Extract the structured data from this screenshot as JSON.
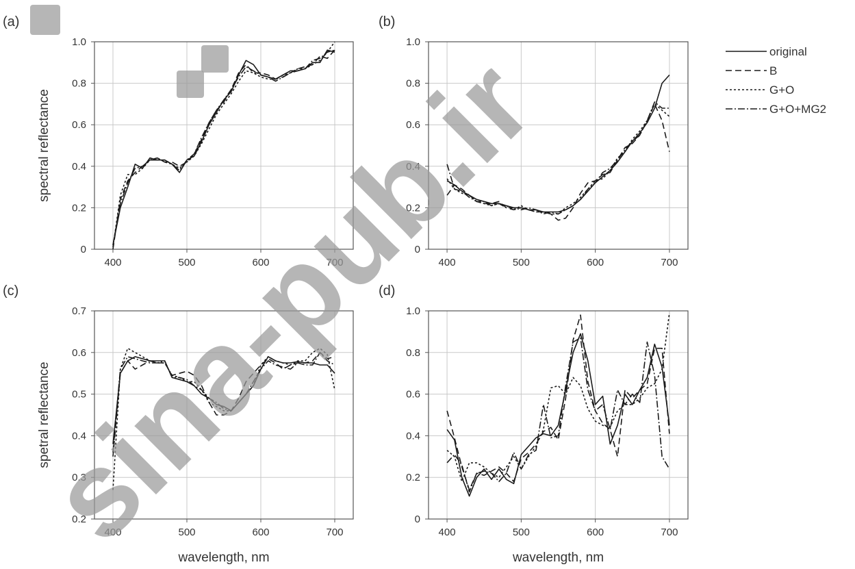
{
  "watermark": {
    "text": "sina-pub.ir"
  },
  "legend": {
    "entries": [
      {
        "name": "original",
        "dash": ""
      },
      {
        "name": "B",
        "dash": "9 5"
      },
      {
        "name": "G+O",
        "dash": "3 3"
      },
      {
        "name": "G+O+MG2",
        "dash": "10 3 2 3"
      }
    ]
  },
  "chart_data": [
    {
      "type": "line",
      "panel_label": "(a)",
      "xlabel": "",
      "ylabel": "spectral reflectance",
      "xlim": [
        375,
        725
      ],
      "ylim": [
        0,
        1.0
      ],
      "xticks": [
        400,
        500,
        600,
        700
      ],
      "yticks": [
        0,
        0.2,
        0.4,
        0.6,
        0.8,
        1.0
      ],
      "ytick_labels": [
        "0",
        "0.2",
        "0.4",
        "0.6",
        "0.8",
        "1.0"
      ],
      "grid": true,
      "x": [
        400,
        410,
        420,
        430,
        440,
        450,
        460,
        470,
        480,
        490,
        500,
        510,
        520,
        530,
        540,
        550,
        560,
        570,
        580,
        590,
        600,
        610,
        620,
        630,
        640,
        650,
        660,
        670,
        680,
        690,
        700
      ],
      "series": [
        {
          "name": "original",
          "values": [
            0.02,
            0.2,
            0.3,
            0.41,
            0.39,
            0.44,
            0.43,
            0.43,
            0.41,
            0.37,
            0.43,
            0.45,
            0.52,
            0.6,
            0.66,
            0.72,
            0.76,
            0.84,
            0.91,
            0.89,
            0.84,
            0.83,
            0.82,
            0.84,
            0.86,
            0.86,
            0.87,
            0.9,
            0.9,
            0.96,
            0.95
          ]
        },
        {
          "name": "B",
          "values": [
            0.0,
            0.24,
            0.33,
            0.37,
            0.4,
            0.43,
            0.44,
            0.42,
            0.42,
            0.4,
            0.42,
            0.46,
            0.53,
            0.61,
            0.67,
            0.71,
            0.77,
            0.85,
            0.89,
            0.85,
            0.85,
            0.84,
            0.82,
            0.83,
            0.85,
            0.87,
            0.88,
            0.89,
            0.93,
            0.92,
            0.96
          ]
        },
        {
          "name": "G+O",
          "values": [
            0.01,
            0.26,
            0.36,
            0.36,
            0.39,
            0.43,
            0.44,
            0.42,
            0.41,
            0.39,
            0.42,
            0.45,
            0.51,
            0.58,
            0.65,
            0.7,
            0.75,
            0.81,
            0.86,
            0.85,
            0.83,
            0.82,
            0.82,
            0.84,
            0.85,
            0.87,
            0.87,
            0.89,
            0.91,
            0.95,
            1.0
          ]
        },
        {
          "name": "G+O+MG2",
          "values": [
            0.02,
            0.22,
            0.32,
            0.39,
            0.4,
            0.43,
            0.43,
            0.43,
            0.41,
            0.38,
            0.43,
            0.46,
            0.54,
            0.61,
            0.67,
            0.72,
            0.77,
            0.83,
            0.88,
            0.86,
            0.84,
            0.83,
            0.81,
            0.83,
            0.85,
            0.86,
            0.87,
            0.91,
            0.92,
            0.95,
            0.96
          ]
        }
      ]
    },
    {
      "type": "line",
      "panel_label": "(b)",
      "xlabel": "",
      "ylabel": "",
      "xlim": [
        375,
        725
      ],
      "ylim": [
        0,
        1.0
      ],
      "xticks": [
        400,
        500,
        600,
        700
      ],
      "yticks": [
        0,
        0.2,
        0.4,
        0.6,
        0.8,
        1.0
      ],
      "ytick_labels": [
        "0",
        "0.2",
        "0.4",
        "0.6",
        "0.8",
        "1.0"
      ],
      "grid": true,
      "x": [
        400,
        410,
        420,
        430,
        440,
        450,
        460,
        470,
        480,
        490,
        500,
        510,
        520,
        530,
        540,
        550,
        560,
        570,
        580,
        590,
        600,
        610,
        620,
        630,
        640,
        650,
        660,
        670,
        680,
        690,
        700
      ],
      "series": [
        {
          "name": "original",
          "values": [
            0.33,
            0.31,
            0.28,
            0.26,
            0.24,
            0.23,
            0.22,
            0.22,
            0.21,
            0.2,
            0.2,
            0.19,
            0.19,
            0.18,
            0.18,
            0.18,
            0.19,
            0.21,
            0.24,
            0.28,
            0.32,
            0.35,
            0.38,
            0.42,
            0.47,
            0.52,
            0.56,
            0.61,
            0.68,
            0.8,
            0.84
          ]
        },
        {
          "name": "B",
          "values": [
            0.26,
            0.31,
            0.29,
            0.26,
            0.23,
            0.22,
            0.22,
            0.23,
            0.2,
            0.19,
            0.2,
            0.19,
            0.18,
            0.18,
            0.17,
            0.14,
            0.15,
            0.2,
            0.27,
            0.32,
            0.33,
            0.36,
            0.37,
            0.43,
            0.49,
            0.51,
            0.55,
            0.62,
            0.7,
            0.62,
            0.47
          ]
        },
        {
          "name": "G+O",
          "values": [
            0.34,
            0.29,
            0.27,
            0.26,
            0.23,
            0.22,
            0.21,
            0.22,
            0.21,
            0.19,
            0.21,
            0.19,
            0.18,
            0.18,
            0.17,
            0.17,
            0.2,
            0.22,
            0.25,
            0.29,
            0.33,
            0.34,
            0.38,
            0.44,
            0.47,
            0.53,
            0.57,
            0.62,
            0.7,
            0.67,
            0.64
          ]
        },
        {
          "name": "G+O+MG2",
          "values": [
            0.41,
            0.29,
            0.28,
            0.25,
            0.23,
            0.23,
            0.21,
            0.22,
            0.2,
            0.2,
            0.19,
            0.2,
            0.19,
            0.17,
            0.18,
            0.17,
            0.19,
            0.21,
            0.24,
            0.29,
            0.32,
            0.37,
            0.39,
            0.43,
            0.48,
            0.52,
            0.55,
            0.62,
            0.71,
            0.68,
            0.68
          ]
        }
      ]
    },
    {
      "type": "line",
      "panel_label": "(c)",
      "xlabel": "wavelength, nm",
      "ylabel": "spetral reflectance",
      "xlim": [
        375,
        725
      ],
      "ylim": [
        0.2,
        0.7
      ],
      "xticks": [
        400,
        500,
        600,
        700
      ],
      "yticks": [
        0.2,
        0.3,
        0.4,
        0.5,
        0.6,
        0.7
      ],
      "ytick_labels": [
        "0.2",
        "0.3",
        "0.4",
        "0.5",
        "0.6",
        "0.7"
      ],
      "grid": true,
      "x": [
        400,
        410,
        420,
        430,
        440,
        450,
        460,
        470,
        480,
        490,
        500,
        510,
        520,
        530,
        540,
        550,
        560,
        570,
        580,
        590,
        600,
        610,
        620,
        630,
        640,
        650,
        660,
        670,
        680,
        690,
        700
      ],
      "series": [
        {
          "name": "original",
          "values": [
            0.38,
            0.55,
            0.58,
            0.59,
            0.585,
            0.58,
            0.58,
            0.58,
            0.54,
            0.535,
            0.53,
            0.52,
            0.5,
            0.49,
            0.475,
            0.47,
            0.46,
            0.48,
            0.5,
            0.52,
            0.56,
            0.59,
            0.58,
            0.575,
            0.575,
            0.578,
            0.575,
            0.575,
            0.57,
            0.57,
            0.55
          ]
        },
        {
          "name": "B",
          "values": [
            0.35,
            0.55,
            0.58,
            0.56,
            0.57,
            0.58,
            0.575,
            0.575,
            0.545,
            0.55,
            0.555,
            0.545,
            0.52,
            0.48,
            0.45,
            0.45,
            0.46,
            0.49,
            0.53,
            0.55,
            0.57,
            0.585,
            0.575,
            0.56,
            0.57,
            0.575,
            0.575,
            0.58,
            0.6,
            0.585,
            0.59
          ]
        },
        {
          "name": "G+O",
          "values": [
            0.27,
            0.56,
            0.61,
            0.6,
            0.59,
            0.58,
            0.575,
            0.575,
            0.545,
            0.54,
            0.53,
            0.53,
            0.51,
            0.48,
            0.47,
            0.46,
            0.46,
            0.48,
            0.5,
            0.52,
            0.57,
            0.59,
            0.58,
            0.575,
            0.57,
            0.58,
            0.58,
            0.6,
            0.61,
            0.595,
            0.51
          ]
        },
        {
          "name": "G+O+MG2",
          "values": [
            0.36,
            0.56,
            0.59,
            0.585,
            0.58,
            0.575,
            0.575,
            0.58,
            0.54,
            0.54,
            0.535,
            0.52,
            0.51,
            0.49,
            0.48,
            0.465,
            0.46,
            0.48,
            0.5,
            0.53,
            0.56,
            0.58,
            0.57,
            0.565,
            0.56,
            0.575,
            0.57,
            0.57,
            0.6,
            0.58,
            0.57
          ]
        }
      ]
    },
    {
      "type": "line",
      "panel_label": "(d)",
      "xlabel": "wavelength, nm",
      "ylabel": "",
      "xlim": [
        375,
        725
      ],
      "ylim": [
        0,
        1.0
      ],
      "xticks": [
        400,
        500,
        600,
        700
      ],
      "yticks": [
        0,
        0.2,
        0.4,
        0.6,
        0.8,
        1.0
      ],
      "ytick_labels": [
        "0",
        "0.2",
        "0.4",
        "0.6",
        "0.8",
        "1.0"
      ],
      "grid": true,
      "x": [
        400,
        410,
        420,
        430,
        440,
        450,
        460,
        470,
        480,
        490,
        500,
        510,
        520,
        530,
        540,
        550,
        560,
        570,
        580,
        590,
        600,
        610,
        620,
        630,
        640,
        650,
        660,
        670,
        680,
        690,
        700
      ],
      "series": [
        {
          "name": "original",
          "values": [
            0.43,
            0.38,
            0.2,
            0.11,
            0.2,
            0.24,
            0.19,
            0.24,
            0.19,
            0.17,
            0.31,
            0.35,
            0.39,
            0.41,
            0.4,
            0.45,
            0.62,
            0.8,
            0.89,
            0.76,
            0.55,
            0.59,
            0.36,
            0.45,
            0.6,
            0.55,
            0.62,
            0.68,
            0.84,
            0.73,
            0.45
          ]
        },
        {
          "name": "B",
          "values": [
            0.52,
            0.39,
            0.25,
            0.14,
            0.22,
            0.21,
            0.23,
            0.25,
            0.22,
            0.18,
            0.29,
            0.32,
            0.36,
            0.42,
            0.44,
            0.38,
            0.58,
            0.86,
            0.98,
            0.66,
            0.52,
            0.46,
            0.43,
            0.3,
            0.62,
            0.58,
            0.62,
            0.65,
            0.82,
            0.82,
            0.41
          ]
        },
        {
          "name": "G+O",
          "values": [
            0.33,
            0.3,
            0.18,
            0.27,
            0.27,
            0.25,
            0.22,
            0.2,
            0.25,
            0.3,
            0.24,
            0.3,
            0.35,
            0.43,
            0.63,
            0.64,
            0.6,
            0.68,
            0.64,
            0.53,
            0.47,
            0.45,
            0.44,
            0.52,
            0.55,
            0.55,
            0.58,
            0.63,
            0.65,
            0.72,
            0.99
          ]
        },
        {
          "name": "G+O+MG2",
          "values": [
            0.27,
            0.31,
            0.26,
            0.13,
            0.22,
            0.23,
            0.22,
            0.18,
            0.22,
            0.32,
            0.24,
            0.31,
            0.33,
            0.55,
            0.39,
            0.4,
            0.64,
            0.85,
            0.87,
            0.62,
            0.52,
            0.55,
            0.43,
            0.62,
            0.55,
            0.6,
            0.56,
            0.85,
            0.69,
            0.3,
            0.24
          ]
        }
      ]
    }
  ]
}
